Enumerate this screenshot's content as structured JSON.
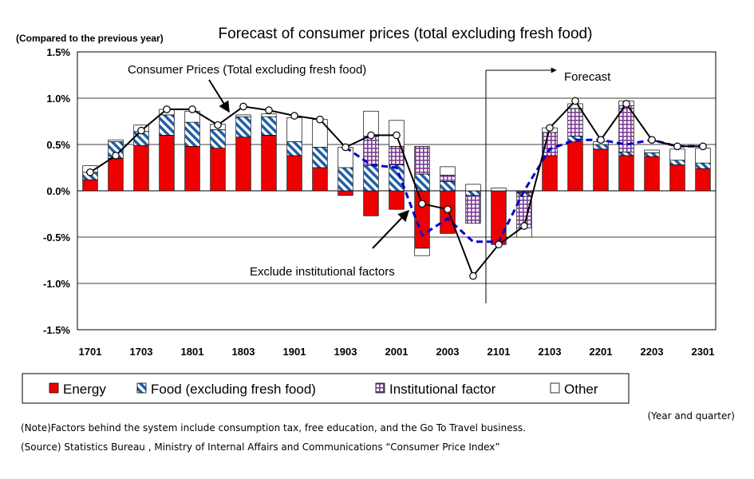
{
  "chart_data": {
    "type": "bar",
    "title": "Forecast of consumer prices (total excluding fresh food)",
    "ylabel": "(Compared to the previous year)",
    "xlabel": "(Year and quarter)",
    "ylim": [
      -1.5,
      1.5
    ],
    "y_ticks": [
      {
        "value": 1.5,
        "label": "1.5%"
      },
      {
        "value": 1.0,
        "label": "1.0%"
      },
      {
        "value": 0.5,
        "label": "0.5%"
      },
      {
        "value": 0.0,
        "label": "0.0%"
      },
      {
        "value": -0.5,
        "label": "-0.5%"
      },
      {
        "value": -1.0,
        "label": "-1.0%"
      },
      {
        "value": -1.5,
        "label": "-1.5%"
      }
    ],
    "categories": [
      "1701",
      "1702",
      "1703",
      "1704",
      "1801",
      "1802",
      "1803",
      "1804",
      "1901",
      "1902",
      "1903",
      "1904",
      "2001",
      "2002",
      "2003",
      "2004",
      "2101",
      "2102",
      "2103",
      "2104",
      "2201",
      "2202",
      "2203",
      "2204",
      "2301"
    ],
    "x_tick_labels": [
      "1701",
      "1703",
      "1801",
      "1803",
      "1901",
      "1903",
      "2001",
      "2003",
      "2101",
      "2103",
      "2201",
      "2203",
      "2301"
    ],
    "grid": "horizontal",
    "legend_position": "bottom",
    "series": [
      {
        "name": "Energy",
        "kind": "bar",
        "values": [
          0.12,
          0.35,
          0.49,
          0.6,
          0.48,
          0.46,
          0.58,
          0.6,
          0.38,
          0.25,
          -0.05,
          -0.27,
          -0.2,
          -0.62,
          -0.46,
          0.0,
          -0.58,
          -0.02,
          0.38,
          0.53,
          0.45,
          0.38,
          0.37,
          0.28,
          0.24
        ]
      },
      {
        "name": "Food (excluding fresh food)",
        "kind": "bar",
        "values": [
          0.08,
          0.18,
          0.15,
          0.22,
          0.26,
          0.2,
          0.22,
          0.2,
          0.15,
          0.22,
          0.25,
          0.27,
          0.28,
          0.18,
          0.1,
          -0.05,
          0.0,
          -0.04,
          0.0,
          0.06,
          0.05,
          0.04,
          0.04,
          0.05,
          0.06
        ]
      },
      {
        "name": "Institutional factor",
        "kind": "bar",
        "values": [
          0,
          0,
          0,
          0,
          0,
          0,
          0,
          0,
          0,
          0,
          0,
          0.32,
          0.2,
          0.3,
          0.07,
          -0.3,
          0,
          -0.34,
          0.25,
          0.3,
          0,
          0.5,
          0,
          0,
          0
        ]
      },
      {
        "name": "Other",
        "kind": "bar",
        "values": [
          0.07,
          0.02,
          0.07,
          0.06,
          0.12,
          0.06,
          0.02,
          0.03,
          0.26,
          0.3,
          0.22,
          0.27,
          0.28,
          -0.08,
          0.09,
          0.07,
          0.03,
          -0.1,
          0.05,
          0.05,
          0.03,
          0.05,
          0.03,
          0.12,
          0.16
        ]
      },
      {
        "name": "Consumer Prices (Total excluding fresh food)",
        "kind": "line",
        "values": [
          0.2,
          0.38,
          0.65,
          0.88,
          0.88,
          0.71,
          0.91,
          0.87,
          0.81,
          0.77,
          0.47,
          0.6,
          0.6,
          -0.14,
          -0.2,
          -0.92,
          -0.58,
          -0.38,
          0.68,
          0.97,
          0.55,
          0.94,
          0.55,
          0.48,
          0.48
        ]
      },
      {
        "name": "Exclude institutional factors",
        "kind": "line",
        "style": "dashed",
        "values": [
          null,
          null,
          null,
          null,
          null,
          null,
          null,
          null,
          null,
          null,
          0.47,
          0.28,
          0.25,
          -0.48,
          -0.3,
          -0.55,
          -0.55,
          0.0,
          0.45,
          0.55,
          0.55,
          0.5,
          0.55,
          0.48,
          0.48
        ]
      }
    ],
    "annotations": [
      {
        "text": "Consumer Prices (Total excluding fresh food)",
        "target": "1802"
      },
      {
        "text": "Exclude institutional factors",
        "target": "2001"
      },
      {
        "text": "Forecast",
        "from": "2101"
      }
    ],
    "colors": {
      "energy": "#ee0000",
      "food": "#1e5fa6",
      "institutional": "#7a3d95",
      "other": "#ffffff",
      "actual_line": "#000000",
      "dashed_line": "#0000cc"
    }
  },
  "notes": {
    "note": "(Note)Factors behind the system include consumption tax, free education, and the Go To Travel business.",
    "source": "(Source) Statistics Bureau , Ministry of Internal Affairs and Communications “Consumer Price Index”"
  }
}
